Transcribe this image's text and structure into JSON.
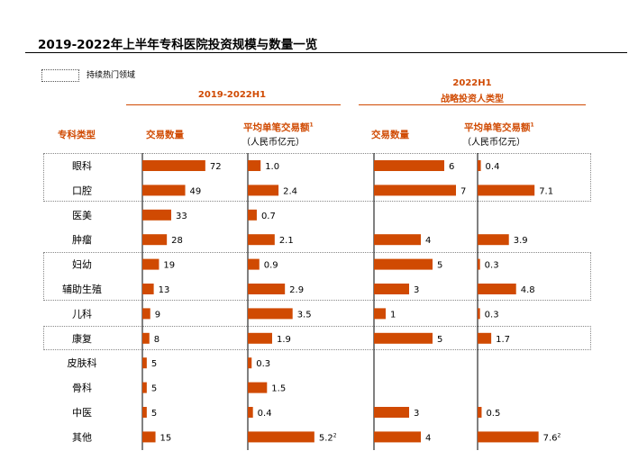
{
  "title": "2019-2022年上半年专科医院投资规模与数量一览",
  "legend": {
    "label": "持续热门领域"
  },
  "group_left": {
    "title": "2019-2022H1"
  },
  "group_right": {
    "title_line1": "2022H1",
    "title_line2": "战略投资人类型"
  },
  "headers": {
    "category": "专科类型",
    "count": "交易数量",
    "avg_main": "平均单笔交易额",
    "avg_sup": "1",
    "avg_sub": "（人民币亿元）"
  },
  "hot_groups": [
    [
      "眼科",
      "口腔"
    ],
    [
      "妇幼",
      "辅助生殖"
    ],
    [
      "康复"
    ]
  ],
  "colors": {
    "bar": "#d04a02",
    "accent": "#d04a02"
  },
  "chart_data": {
    "type": "bar",
    "categories": [
      "眼科",
      "口腔",
      "医美",
      "肿瘤",
      "妇幼",
      "辅助生殖",
      "儿科",
      "康复",
      "皮肤科",
      "骨科",
      "中医",
      "其他"
    ],
    "series": [
      {
        "name": "2019-2022H1 交易数量",
        "values": [
          72,
          49,
          33,
          28,
          19,
          13,
          9,
          8,
          5,
          5,
          5,
          15
        ]
      },
      {
        "name": "2019-2022H1 平均单笔交易额（人民币亿元）",
        "values": [
          1.0,
          2.4,
          0.7,
          2.1,
          0.9,
          2.9,
          3.5,
          1.9,
          0.3,
          1.5,
          0.4,
          5.2
        ]
      },
      {
        "name": "2022H1 交易数量",
        "values": [
          6,
          7,
          null,
          4,
          5,
          3,
          1,
          5,
          null,
          null,
          3,
          4
        ]
      },
      {
        "name": "2022H1 平均单笔交易额（人民币亿元）",
        "values": [
          0.4,
          7.1,
          null,
          3.9,
          0.3,
          4.8,
          0.3,
          1.7,
          null,
          null,
          0.5,
          7.6
        ]
      }
    ],
    "labels": [
      [
        "72",
        "49",
        "33",
        "28",
        "19",
        "13",
        "9",
        "8",
        "5",
        "5",
        "5",
        "15"
      ],
      [
        "1.0",
        "2.4",
        "0.7",
        "2.1",
        "0.9",
        "2.9",
        "3.5",
        "1.9",
        "0.3",
        "1.5",
        "0.4",
        "5.2"
      ],
      [
        "6",
        "7",
        "",
        "4",
        "5",
        "3",
        "1",
        "5",
        "",
        "",
        "3",
        "4"
      ],
      [
        "0.4",
        "7.1",
        "",
        "3.9",
        "0.3",
        "4.8",
        "0.3",
        "1.7",
        "",
        "",
        "0.5",
        "7.6"
      ]
    ],
    "footnote_marks": {
      "11": "2"
    }
  }
}
